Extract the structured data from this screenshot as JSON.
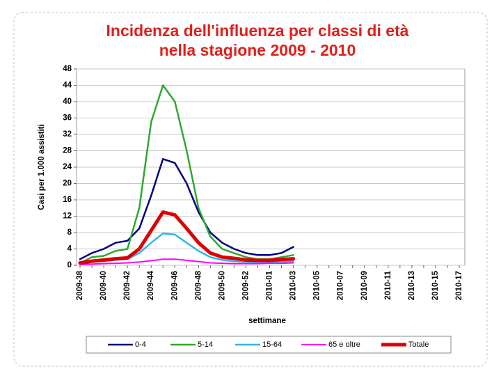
{
  "chart_data": {
    "type": "line",
    "title": [
      "Incidenza dell'influenza per classi di età",
      "nella stagione 2009 - 2010"
    ],
    "x_label": "settimane",
    "y_label": "Casi per 1.000 assistiti",
    "categories": [
      "2009-38",
      null,
      "2009-40",
      null,
      "2009-42",
      null,
      "2009-44",
      null,
      "2009-46",
      null,
      "2009-48",
      null,
      "2009-50",
      null,
      "2009-52",
      null,
      "2010-01",
      null,
      "2010-03",
      null,
      "2010-05",
      null,
      "2010-07",
      null,
      "2010-09",
      null,
      "2010-11",
      null,
      "2010-13",
      null,
      "2010-15",
      null,
      "2010-17"
    ],
    "series": [
      {
        "name": "0-4",
        "color": "#000080",
        "width": 2.5,
        "values": [
          1.5,
          3,
          4,
          5.5,
          6,
          9,
          17,
          26,
          25,
          20,
          13,
          8,
          5.5,
          4,
          3,
          2.5,
          2.5,
          3,
          4.5,
          null,
          null,
          null,
          null,
          null,
          null,
          null,
          null,
          null,
          null,
          null,
          null,
          null,
          null
        ]
      },
      {
        "name": "5-14",
        "color": "#2ea82e",
        "width": 2.5,
        "values": [
          0.5,
          2,
          2.3,
          3.5,
          4,
          14,
          35,
          44,
          40,
          28,
          14,
          7,
          4,
          3,
          2,
          1.5,
          1.5,
          2,
          2.5,
          null,
          null,
          null,
          null,
          null,
          null,
          null,
          null,
          null,
          null,
          null,
          null,
          null,
          null
        ]
      },
      {
        "name": "15-64",
        "color": "#33b5e5",
        "width": 2.5,
        "values": [
          0.3,
          0.8,
          1,
          1.3,
          1.5,
          3,
          5.5,
          7.8,
          7.5,
          5.5,
          3.5,
          2,
          1.3,
          1,
          0.8,
          0.7,
          0.7,
          0.8,
          1,
          null,
          null,
          null,
          null,
          null,
          null,
          null,
          null,
          null,
          null,
          null,
          null,
          null,
          null
        ]
      },
      {
        "name": "65 e oltre",
        "color": "#ff00ff",
        "width": 2,
        "values": [
          0.2,
          0.3,
          0.4,
          0.5,
          0.6,
          0.8,
          1.1,
          1.5,
          1.5,
          1.2,
          0.9,
          0.6,
          0.5,
          0.4,
          0.4,
          0.4,
          0.5,
          0.5,
          0.6,
          null,
          null,
          null,
          null,
          null,
          null,
          null,
          null,
          null,
          null,
          null,
          null,
          null,
          null
        ]
      },
      {
        "name": "Totale",
        "color": "#dd0000",
        "width": 5,
        "values": [
          0.6,
          1,
          1.3,
          1.6,
          1.8,
          4,
          8.5,
          13,
          12.3,
          9,
          5.5,
          3,
          2,
          1.7,
          1.3,
          1.2,
          1.2,
          1.4,
          1.6,
          null,
          null,
          null,
          null,
          null,
          null,
          null,
          null,
          null,
          null,
          null,
          null,
          null,
          null
        ]
      }
    ],
    "ylim": [
      0,
      48
    ],
    "yticks": [
      0,
      4,
      8,
      12,
      16,
      20,
      24,
      28,
      32,
      36,
      40,
      44,
      48
    ],
    "grid": true,
    "legend": "bottom"
  }
}
